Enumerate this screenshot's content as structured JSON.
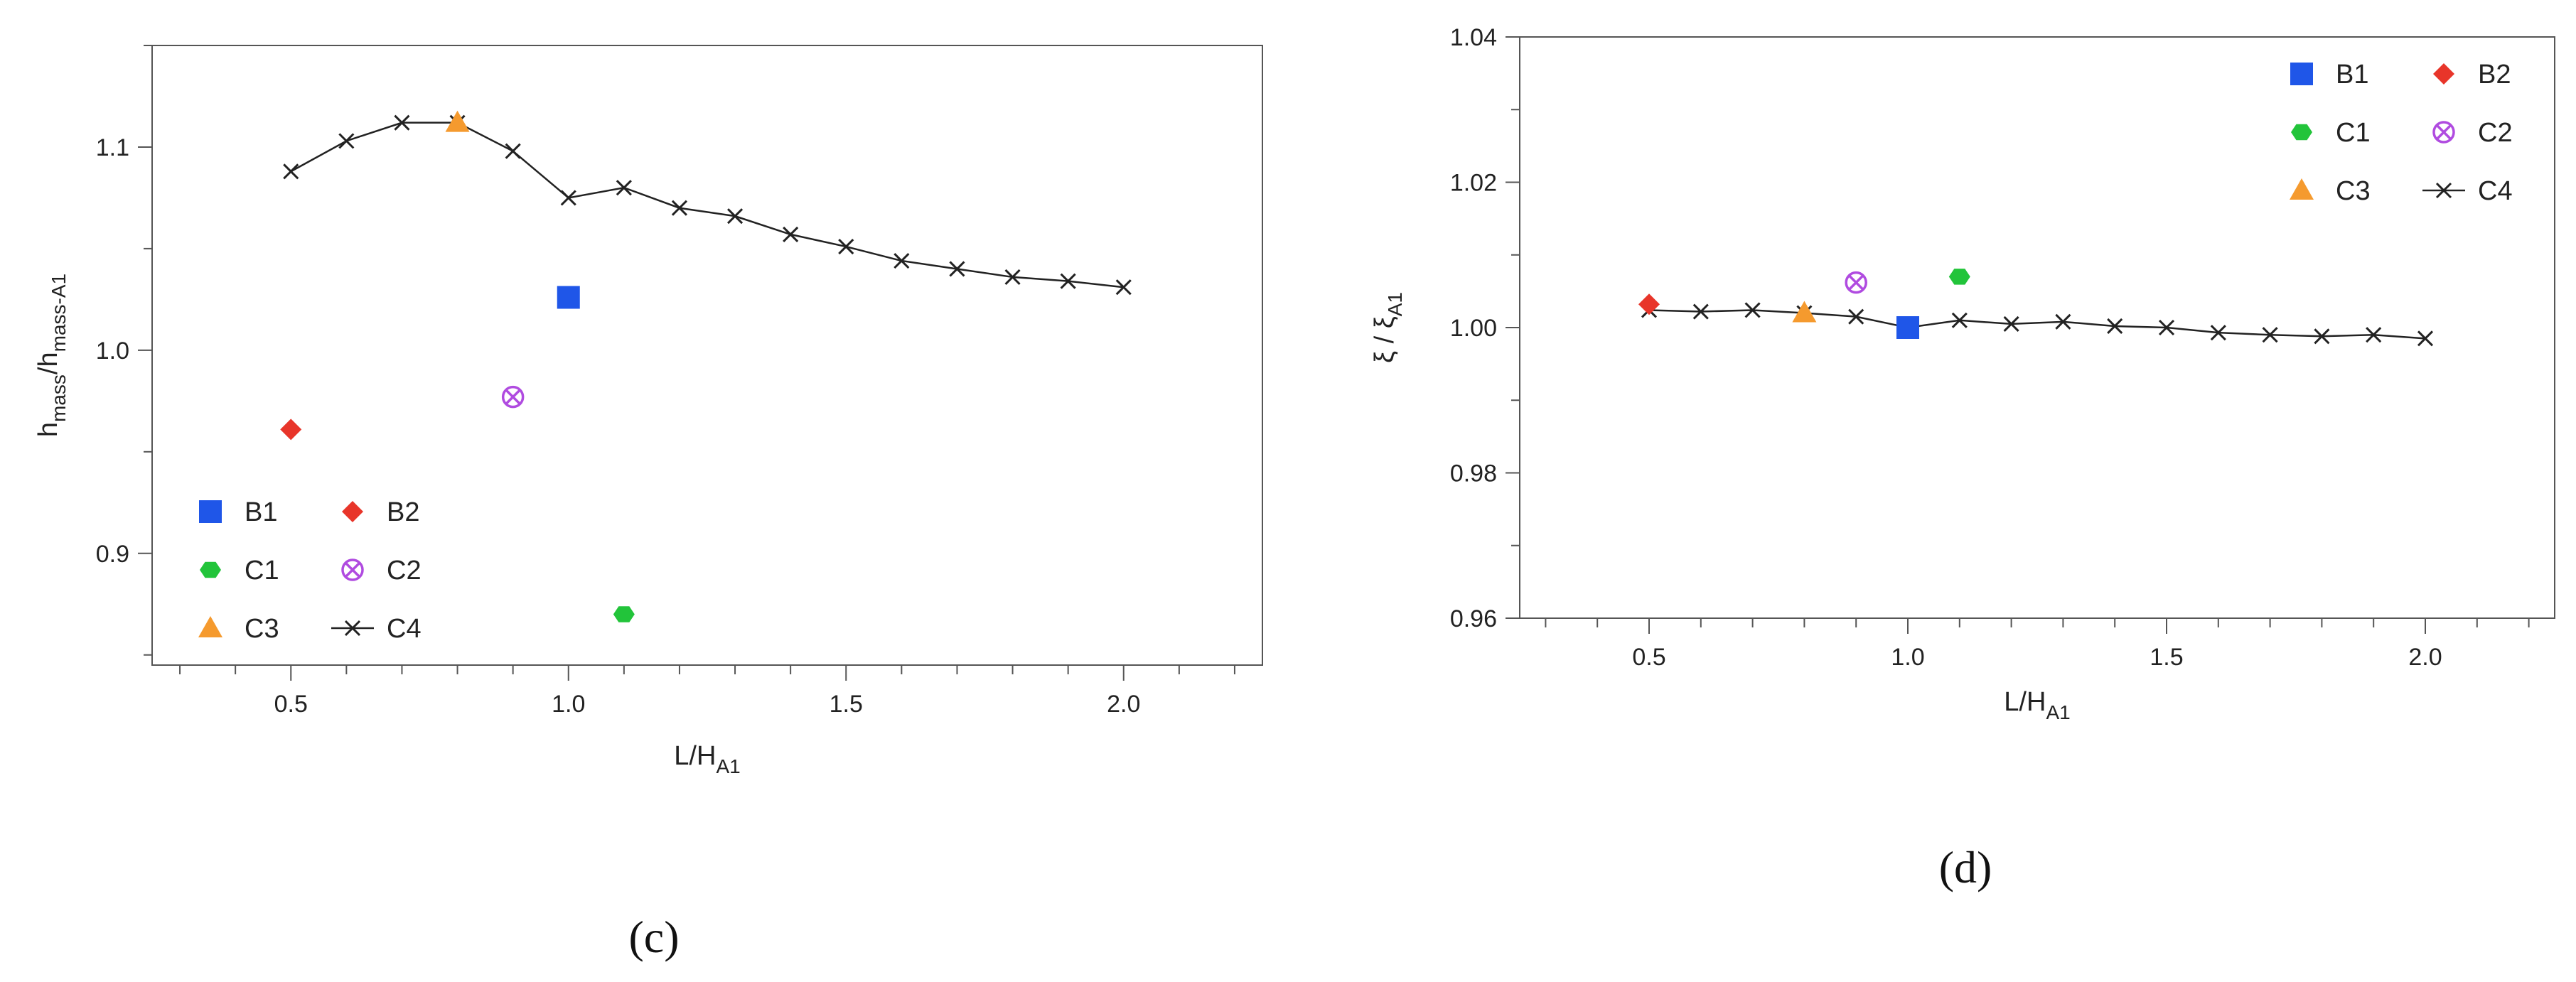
{
  "colors": {
    "B1": "#1f56e8",
    "B2": "#e8352a",
    "C1": "#22c43a",
    "C2": "#b04be0",
    "C3": "#f59a2e",
    "C4": "#222222",
    "axis": "#555555"
  },
  "chart_data": [
    {
      "id": "c",
      "type": "scatter",
      "panel_label": "(c)",
      "xlabel": {
        "main": "L/H",
        "sub": "A1"
      },
      "ylabel": {
        "main": "h",
        "sub1": "mass",
        "mid": "/h",
        "sub2": "mass-A1"
      },
      "xlim": [
        0.25,
        2.25
      ],
      "ylim": [
        0.845,
        1.15
      ],
      "xticks": [
        {
          "v": 0.5,
          "label": "0.5"
        },
        {
          "v": 1.0,
          "label": "1.0"
        },
        {
          "v": 1.5,
          "label": "1.5"
        },
        {
          "v": 2.0,
          "label": "2.0"
        }
      ],
      "yticks": [
        {
          "v": 0.9,
          "label": "0.9"
        },
        {
          "v": 1.0,
          "label": "1.0"
        },
        {
          "v": 1.1,
          "label": "1.1"
        }
      ],
      "legend_position": "bottom-left",
      "legend": [
        {
          "key": "B1",
          "label": "B1"
        },
        {
          "key": "B2",
          "label": "B2"
        },
        {
          "key": "C1",
          "label": "C1"
        },
        {
          "key": "C2",
          "label": "C2"
        },
        {
          "key": "C3",
          "label": "C3"
        },
        {
          "key": "C4",
          "label": "C4"
        }
      ],
      "series": [
        {
          "key": "C4",
          "marker": "x-line",
          "x": [
            0.5,
            0.6,
            0.7,
            0.8,
            0.9,
            1.0,
            1.1,
            1.2,
            1.3,
            1.4,
            1.5,
            1.6,
            1.7,
            1.8,
            1.9,
            2.0
          ],
          "y": [
            1.088,
            1.103,
            1.112,
            1.112,
            1.098,
            1.075,
            1.08,
            1.07,
            1.066,
            1.057,
            1.051,
            1.044,
            1.04,
            1.036,
            1.034,
            1.031
          ]
        },
        {
          "key": "B1",
          "marker": "square",
          "x": [
            1.0
          ],
          "y": [
            1.026
          ]
        },
        {
          "key": "B2",
          "marker": "diamond",
          "x": [
            0.5
          ],
          "y": [
            0.961
          ]
        },
        {
          "key": "C1",
          "marker": "hexagon",
          "x": [
            1.1
          ],
          "y": [
            0.87
          ]
        },
        {
          "key": "C2",
          "marker": "circle-x",
          "x": [
            0.9
          ],
          "y": [
            0.977
          ]
        },
        {
          "key": "C3",
          "marker": "triangle",
          "x": [
            0.8
          ],
          "y": [
            1.112
          ]
        }
      ]
    },
    {
      "id": "d",
      "type": "scatter",
      "panel_label": "(d)",
      "xlabel": {
        "main": "L/H",
        "sub": "A1"
      },
      "ylabel": {
        "main": "ξ / ξ",
        "sub": "A1"
      },
      "xlim": [
        0.25,
        2.25
      ],
      "ylim": [
        0.96,
        1.04
      ],
      "xticks": [
        {
          "v": 0.5,
          "label": "0.5"
        },
        {
          "v": 1.0,
          "label": "1.0"
        },
        {
          "v": 1.5,
          "label": "1.5"
        },
        {
          "v": 2.0,
          "label": "2.0"
        }
      ],
      "yticks": [
        {
          "v": 0.96,
          "label": "0.96"
        },
        {
          "v": 0.98,
          "label": "0.98"
        },
        {
          "v": 1.0,
          "label": "1.00"
        },
        {
          "v": 1.02,
          "label": "1.02"
        },
        {
          "v": 1.04,
          "label": "1.04"
        }
      ],
      "legend_position": "top-right",
      "legend": [
        {
          "key": "B1",
          "label": "B1"
        },
        {
          "key": "B2",
          "label": "B2"
        },
        {
          "key": "C1",
          "label": "C1"
        },
        {
          "key": "C2",
          "label": "C2"
        },
        {
          "key": "C3",
          "label": "C3"
        },
        {
          "key": "C4",
          "label": "C4"
        }
      ],
      "series": [
        {
          "key": "C4",
          "marker": "x-line",
          "x": [
            0.5,
            0.6,
            0.7,
            0.8,
            0.9,
            1.0,
            1.1,
            1.2,
            1.3,
            1.4,
            1.5,
            1.6,
            1.7,
            1.8,
            1.9,
            2.0
          ],
          "y": [
            1.0024,
            1.0022,
            1.0024,
            1.002,
            1.0015,
            1.0,
            1.001,
            1.0005,
            1.0008,
            1.0002,
            1.0,
            0.9993,
            0.999,
            0.9988,
            0.999,
            0.9985
          ]
        },
        {
          "key": "B1",
          "marker": "square",
          "x": [
            1.0
          ],
          "y": [
            1.0
          ]
        },
        {
          "key": "B2",
          "marker": "diamond",
          "x": [
            0.5
          ],
          "y": [
            1.0032
          ]
        },
        {
          "key": "C1",
          "marker": "hexagon",
          "x": [
            1.1
          ],
          "y": [
            1.007
          ]
        },
        {
          "key": "C2",
          "marker": "circle-x",
          "x": [
            0.9
          ],
          "y": [
            1.0062
          ]
        },
        {
          "key": "C3",
          "marker": "triangle",
          "x": [
            0.8
          ],
          "y": [
            1.002
          ]
        }
      ]
    }
  ]
}
